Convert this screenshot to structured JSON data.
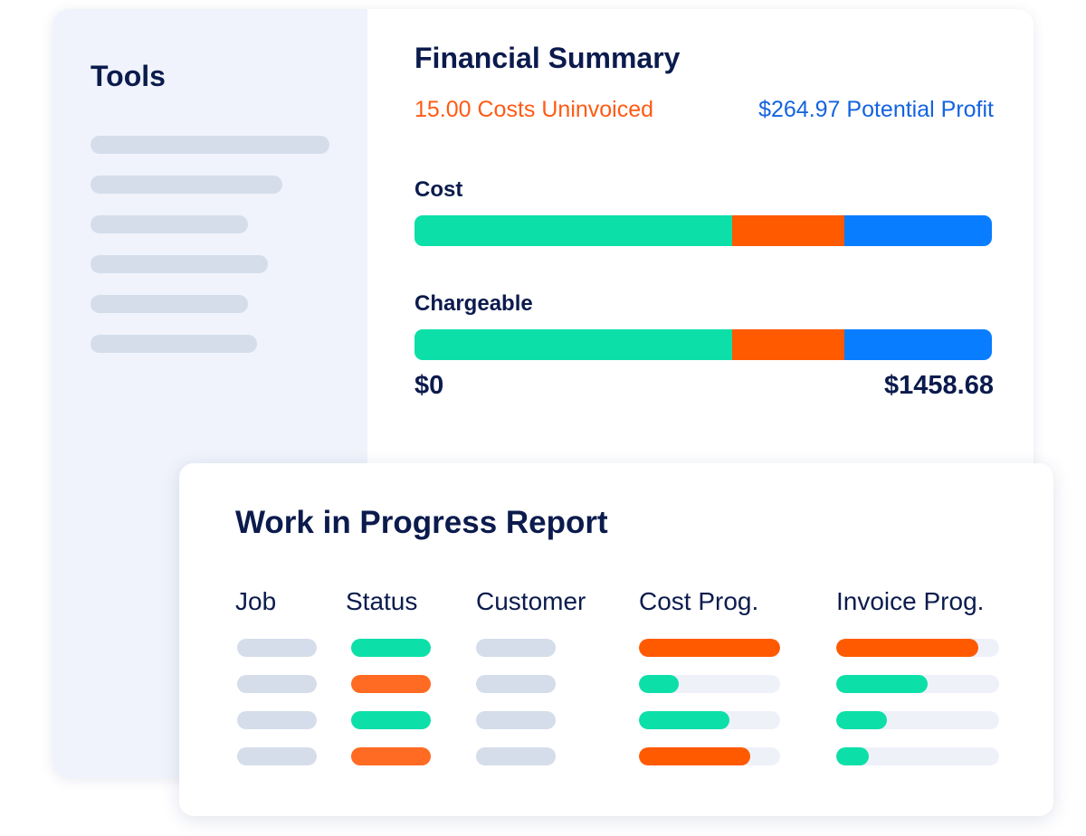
{
  "sidebar": {
    "title": "Tools",
    "placeholder_lines": 6
  },
  "financial_summary": {
    "title": "Financial Summary",
    "costs_uninvoiced": "15.00 Costs Uninvoiced",
    "potential_profit": "$264.97 Potential Profit",
    "bars": [
      {
        "label": "Cost",
        "segments": [
          0.55,
          0.195,
          0.255
        ]
      },
      {
        "label": "Chargeable",
        "segments": [
          0.55,
          0.195,
          0.255
        ]
      }
    ],
    "axis_min": "$0",
    "axis_max": "$1458.68"
  },
  "wip_report": {
    "title": "Work in Progress Report",
    "columns": [
      "Job",
      "Status",
      "Customer",
      "Cost Prog.",
      "Invoice Prog."
    ],
    "rows": [
      {
        "status": "green",
        "cost_progress": 1.0,
        "cost_color": "orange",
        "invoice_progress": 0.87,
        "invoice_color": "orange"
      },
      {
        "status": "orange",
        "cost_progress": 0.28,
        "cost_color": "green",
        "invoice_progress": 0.56,
        "invoice_color": "green"
      },
      {
        "status": "green",
        "cost_progress": 0.64,
        "cost_color": "green",
        "invoice_progress": 0.31,
        "invoice_color": "green"
      },
      {
        "status": "orange",
        "cost_progress": 0.79,
        "cost_color": "orange",
        "invoice_progress": 0.2,
        "invoice_color": "green"
      }
    ]
  },
  "colors": {
    "green": "#0ddfa9",
    "orange": "#ff5a00",
    "blue": "#087dff",
    "navy": "#0b1b4d"
  }
}
